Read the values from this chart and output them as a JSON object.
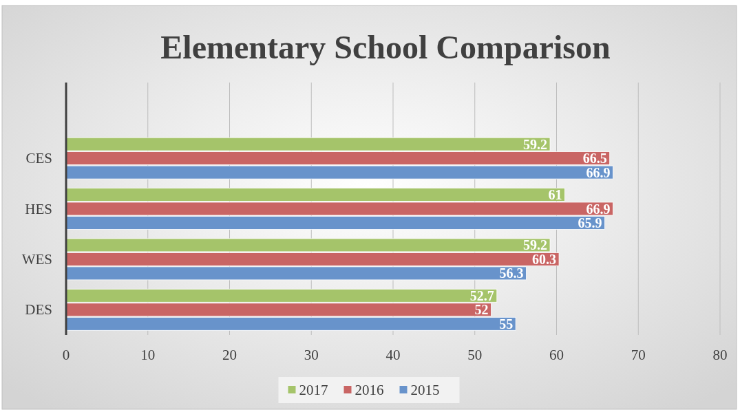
{
  "chart_data": {
    "type": "bar",
    "orientation": "horizontal",
    "title": "Elementary School Comparison",
    "categories": [
      null,
      "CES",
      "HES",
      "WES",
      "DES"
    ],
    "series": [
      {
        "name": "2017",
        "color": "#a5c46a",
        "values": [
          null,
          59.2,
          61,
          59.2,
          52.7
        ]
      },
      {
        "name": "2016",
        "color": "#c96564",
        "values": [
          null,
          66.5,
          66.9,
          60.3,
          52
        ]
      },
      {
        "name": "2015",
        "color": "#6893cb",
        "values": [
          null,
          66.9,
          65.9,
          56.3,
          55
        ]
      }
    ],
    "xlim": [
      0,
      80
    ],
    "xticks": [
      0,
      10,
      20,
      30,
      40,
      50,
      60,
      70,
      80
    ],
    "grid": "x",
    "legend": "bottom",
    "data_labels": true
  }
}
